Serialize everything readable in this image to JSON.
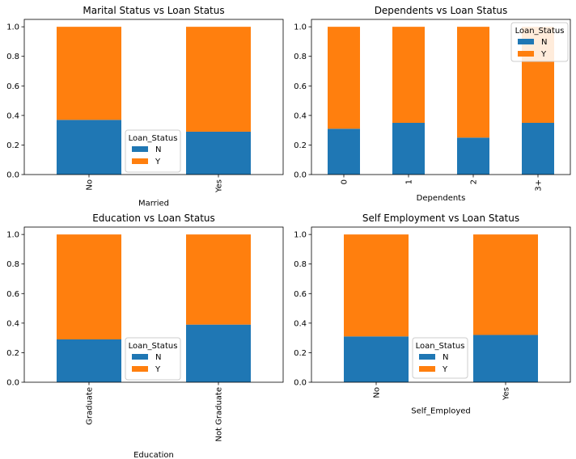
{
  "colors": {
    "N": "#1f77b4",
    "Y": "#ff7f0e"
  },
  "chart_data": [
    {
      "type": "bar",
      "stacked": true,
      "title": "Marital Status vs Loan Status",
      "xlabel": "Married",
      "ylabel": "",
      "categories": [
        "No",
        "Yes"
      ],
      "ylim": [
        0,
        1.05
      ],
      "yticks": [
        "0.0",
        "0.2",
        "0.4",
        "0.6",
        "0.8",
        "1.0"
      ],
      "legend": {
        "title": "Loan_Status",
        "placement": "bottom-center"
      },
      "series": [
        {
          "name": "N",
          "values": [
            0.37,
            0.29
          ]
        },
        {
          "name": "Y",
          "values": [
            0.63,
            0.71
          ]
        }
      ]
    },
    {
      "type": "bar",
      "stacked": true,
      "title": "Dependents vs Loan Status",
      "xlabel": "Dependents",
      "ylabel": "",
      "categories": [
        "0",
        "1",
        "2",
        "3+"
      ],
      "ylim": [
        0,
        1.05
      ],
      "yticks": [
        "0.0",
        "0.2",
        "0.4",
        "0.6",
        "0.8",
        "1.0"
      ],
      "legend": {
        "title": "Loan_Status",
        "placement": "top-right"
      },
      "series": [
        {
          "name": "N",
          "values": [
            0.31,
            0.35,
            0.25,
            0.35
          ]
        },
        {
          "name": "Y",
          "values": [
            0.69,
            0.65,
            0.75,
            0.65
          ]
        }
      ]
    },
    {
      "type": "bar",
      "stacked": true,
      "title": "Education vs Loan Status",
      "xlabel": "Education",
      "ylabel": "",
      "categories": [
        "Graduate",
        "Not Graduate"
      ],
      "ylim": [
        0,
        1.05
      ],
      "yticks": [
        "0.0",
        "0.2",
        "0.4",
        "0.6",
        "0.8",
        "1.0"
      ],
      "legend": {
        "title": "Loan_Status",
        "placement": "bottom-center"
      },
      "series": [
        {
          "name": "N",
          "values": [
            0.29,
            0.39
          ]
        },
        {
          "name": "Y",
          "values": [
            0.71,
            0.61
          ]
        }
      ]
    },
    {
      "type": "bar",
      "stacked": true,
      "title": "Self Employment vs Loan Status",
      "xlabel": "Self_Employed",
      "ylabel": "",
      "categories": [
        "No",
        "Yes"
      ],
      "ylim": [
        0,
        1.05
      ],
      "yticks": [
        "0.0",
        "0.2",
        "0.4",
        "0.6",
        "0.8",
        "1.0"
      ],
      "legend": {
        "title": "Loan_Status",
        "placement": "bottom-center"
      },
      "series": [
        {
          "name": "N",
          "values": [
            0.31,
            0.32
          ]
        },
        {
          "name": "Y",
          "values": [
            0.69,
            0.68
          ]
        }
      ]
    }
  ]
}
